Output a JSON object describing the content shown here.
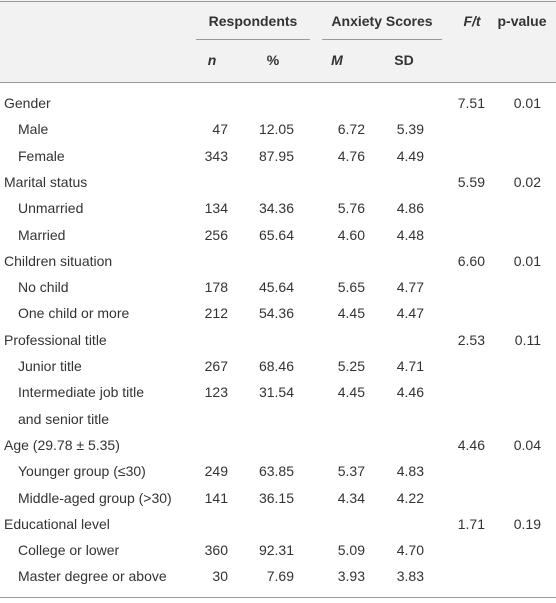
{
  "header": {
    "groups": [
      "Respondents",
      "Anxiety Scores"
    ],
    "columns": [
      "n",
      "%",
      "M",
      "SD"
    ],
    "stat_columns": [
      "F/t",
      "p-value"
    ]
  },
  "rows": [
    {
      "label": "Gender",
      "stats": [
        "7.51",
        "0.01"
      ]
    },
    {
      "label": "Male",
      "cells": [
        "47",
        "12.05",
        "6.72",
        "5.39"
      ]
    },
    {
      "label": "Female",
      "cells": [
        "343",
        "87.95",
        "4.76",
        "4.49"
      ]
    },
    {
      "label": "Marital status",
      "stats": [
        "5.59",
        "0.02"
      ]
    },
    {
      "label": "Unmarried",
      "cells": [
        "134",
        "34.36",
        "5.76",
        "4.86"
      ]
    },
    {
      "label": "Married",
      "cells": [
        "256",
        "65.64",
        "4.60",
        "4.48"
      ]
    },
    {
      "label": "Children situation",
      "stats": [
        "6.60",
        "0.01"
      ]
    },
    {
      "label": "No child",
      "cells": [
        "178",
        "45.64",
        "5.65",
        "4.77"
      ]
    },
    {
      "label": "One child or more",
      "cells": [
        "212",
        "54.36",
        "4.45",
        "4.47"
      ]
    },
    {
      "label": "Professional title",
      "stats": [
        "2.53",
        "0.11"
      ]
    },
    {
      "label": "Junior title",
      "cells": [
        "267",
        "68.46",
        "5.25",
        "4.71"
      ]
    },
    {
      "label": "Intermediate job title",
      "label_cont": "and senior title",
      "cells": [
        "123",
        "31.54",
        "4.45",
        "4.46"
      ]
    },
    {
      "label": "Age (29.78 ± 5.35)",
      "stats": [
        "4.46",
        "0.04"
      ]
    },
    {
      "label": "Younger group (≤30)",
      "cells": [
        "249",
        "63.85",
        "5.37",
        "4.83"
      ]
    },
    {
      "label": "Middle-aged group (>30)",
      "cells": [
        "141",
        "36.15",
        "4.34",
        "4.22"
      ]
    },
    {
      "label": "Educational level",
      "stats": [
        "1.71",
        "0.19"
      ]
    },
    {
      "label": "College or lower",
      "cells": [
        "360",
        "92.31",
        "5.09",
        "4.70"
      ]
    },
    {
      "label": "Master degree or above",
      "cells": [
        "30",
        "7.69",
        "3.93",
        "3.83"
      ]
    }
  ]
}
